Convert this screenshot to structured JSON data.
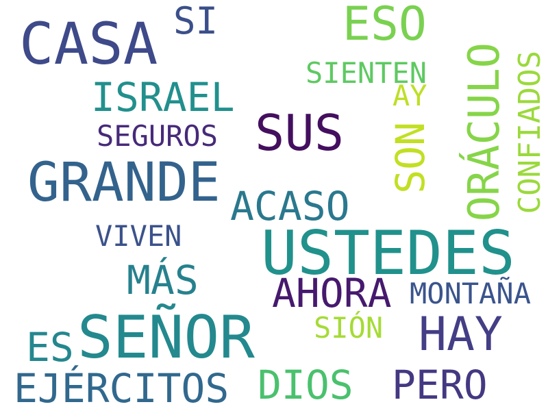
{
  "words": {
    "casa": {
      "text": "CASA",
      "color": "#3e4a89"
    },
    "si": {
      "text": "SI",
      "color": "#3b4f8a"
    },
    "eso": {
      "text": "ESO",
      "color": "#7ad151"
    },
    "sienten": {
      "text": "SIENTEN",
      "color": "#5ec962"
    },
    "israel": {
      "text": "ISRAEL",
      "color": "#21908d"
    },
    "ay": {
      "text": "AY",
      "color": "#bddf26"
    },
    "sus": {
      "text": "SUS",
      "color": "#440f5f"
    },
    "seguros": {
      "text": "SEGUROS",
      "color": "#472a7a"
    },
    "grande": {
      "text": "GRANDE",
      "color": "#33638d"
    },
    "acaso": {
      "text": "ACASO",
      "color": "#2a788e"
    },
    "viven": {
      "text": "VIVEN",
      "color": "#3b528b"
    },
    "ustedes": {
      "text": "USTEDES",
      "color": "#21918c"
    },
    "mas": {
      "text": "MÁS",
      "color": "#26818e"
    },
    "ahora": {
      "text": "AHORA",
      "color": "#46196e"
    },
    "montana": {
      "text": "MONTAÑA",
      "color": "#3a548c"
    },
    "senor": {
      "text": "SEÑOR",
      "color": "#23898e"
    },
    "es": {
      "text": "ES",
      "color": "#24878e"
    },
    "sion": {
      "text": "SIÓN",
      "color": "#a5db36"
    },
    "hay": {
      "text": "HAY",
      "color": "#433e85"
    },
    "ejercitos": {
      "text": "EJÉRCITOS",
      "color": "#31688e"
    },
    "dios": {
      "text": "DIOS",
      "color": "#4ac16d"
    },
    "pero": {
      "text": "PERO",
      "color": "#453882"
    },
    "son": {
      "text": "SON",
      "color": "#c2df23"
    },
    "oraculo": {
      "text": "ORÁCULO",
      "color": "#86d549"
    },
    "confiados": {
      "text": "CONFIADOS",
      "color": "#9bd93c"
    }
  }
}
